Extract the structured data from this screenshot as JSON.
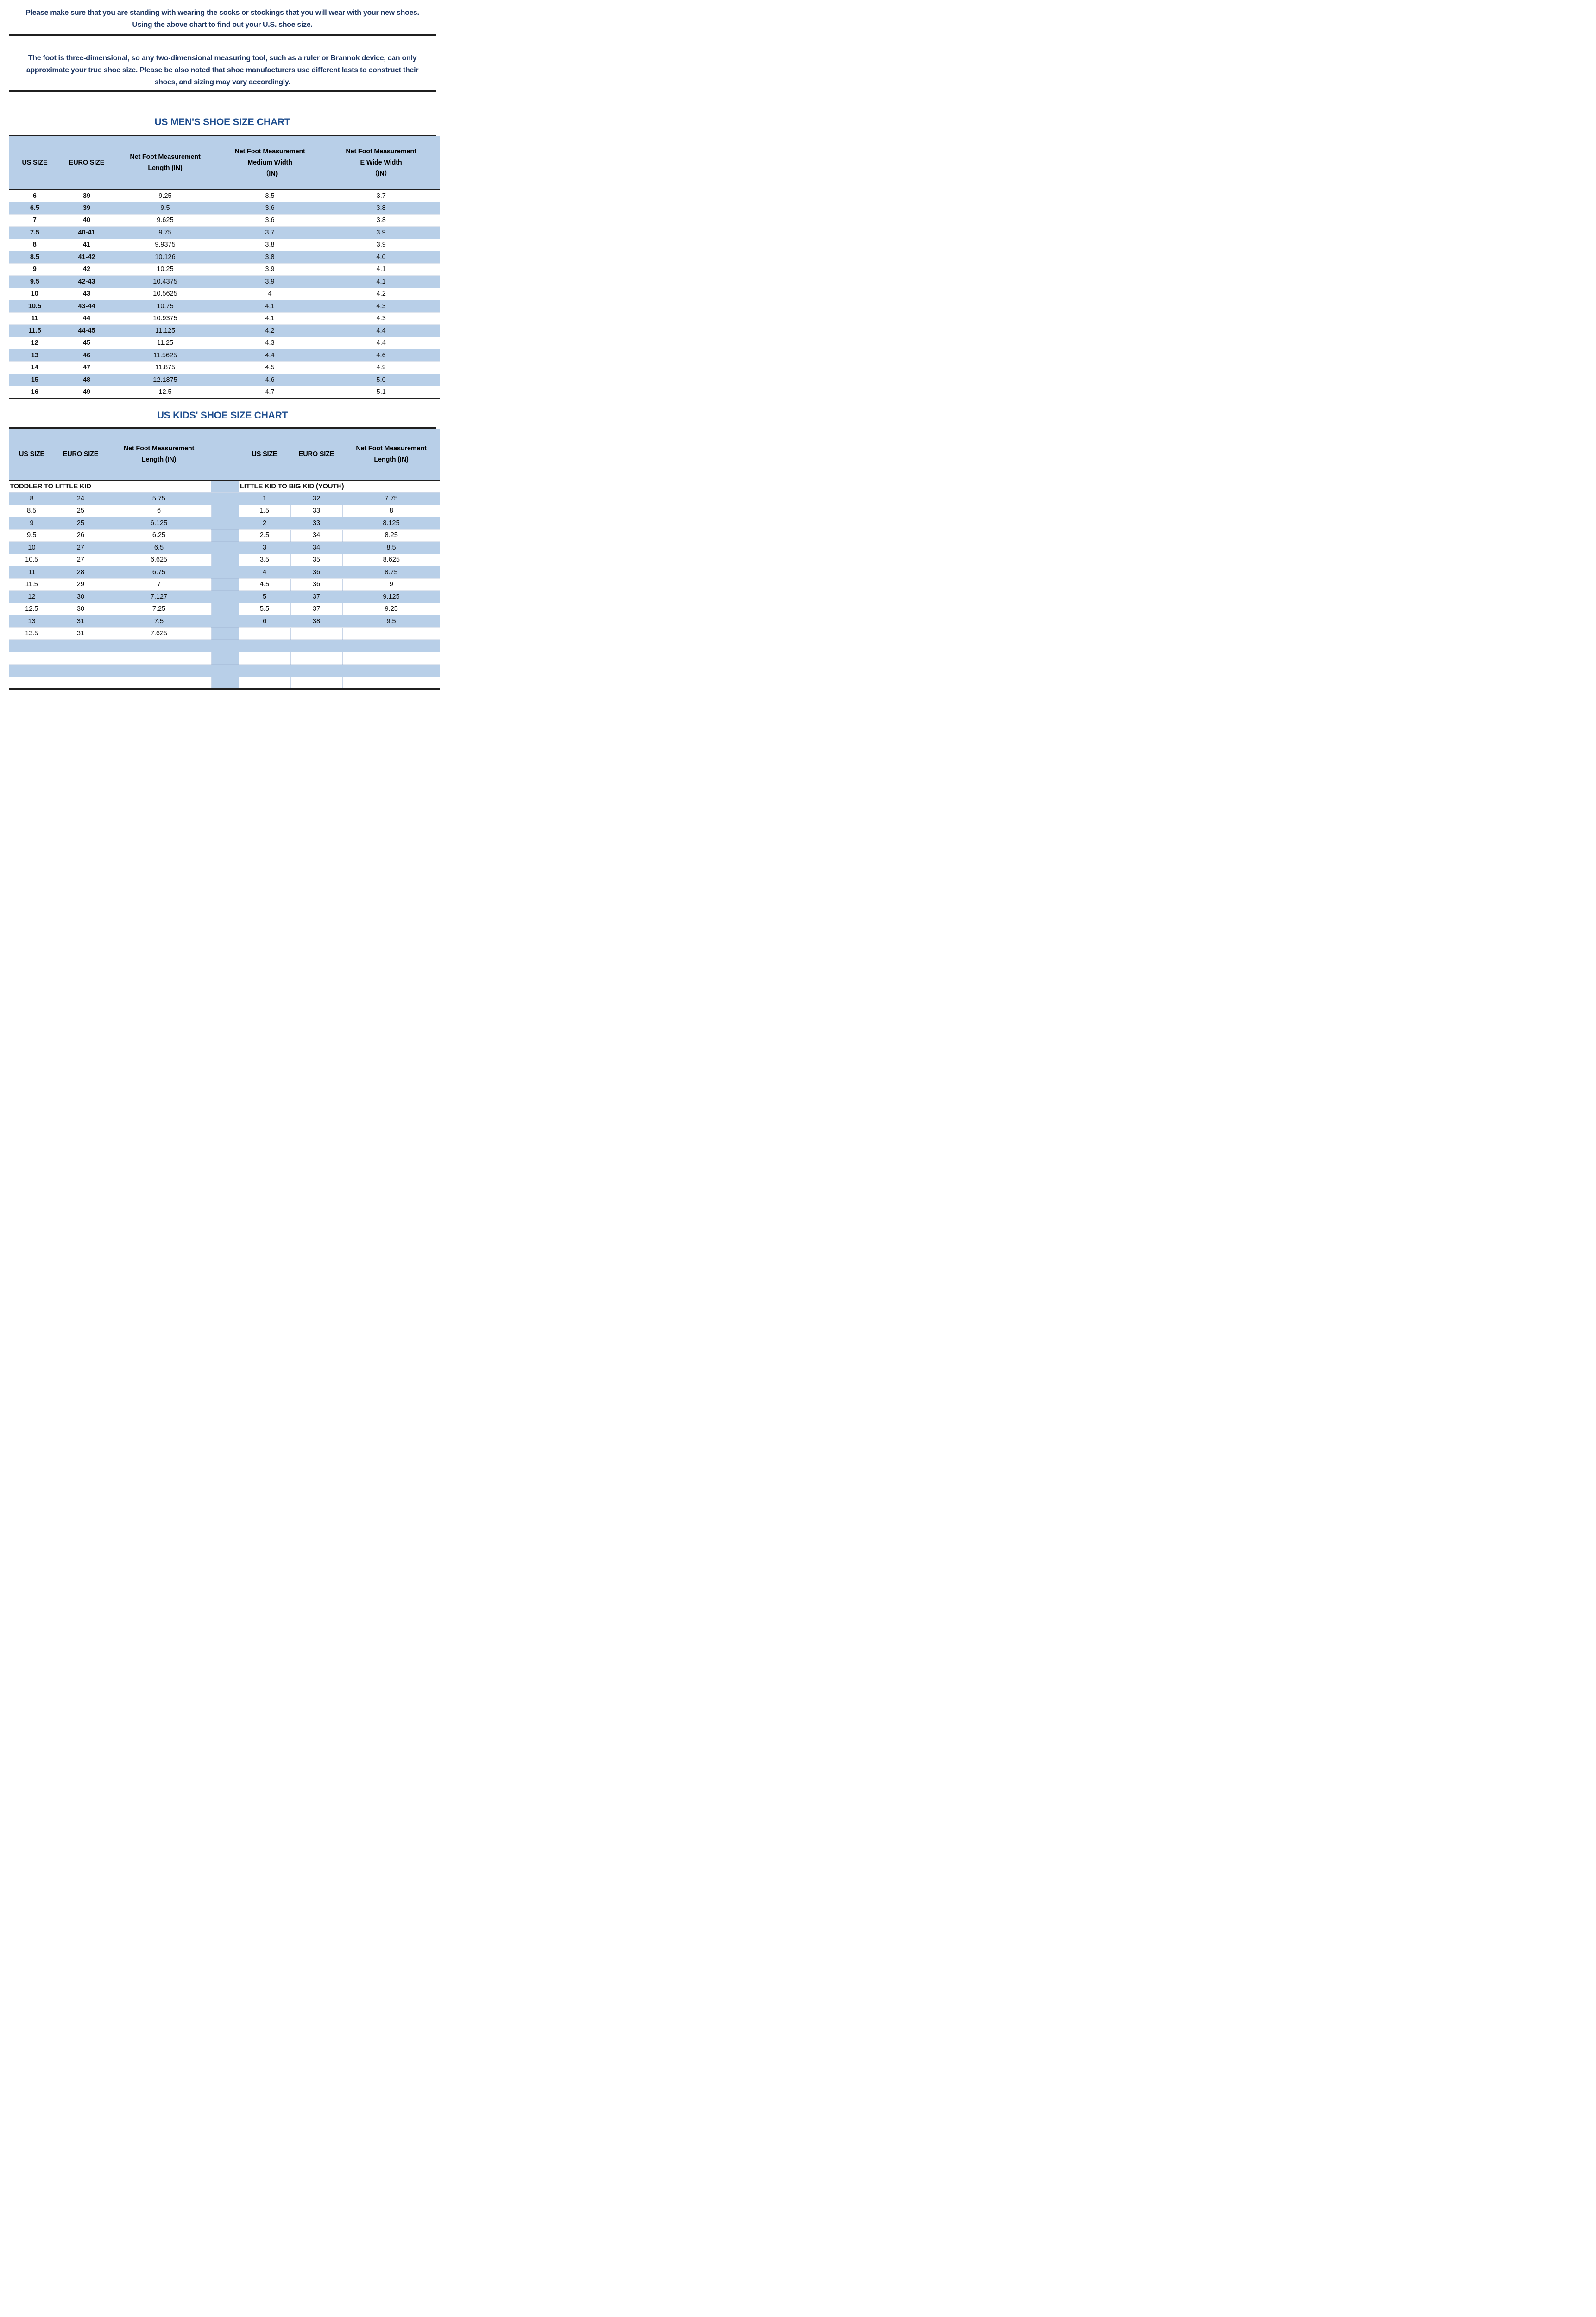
{
  "colors": {
    "accent": "#b8cfe8",
    "heading": "#1f4e8f",
    "bodytext": "#203864",
    "line": "#1f1f1f",
    "grid": "#c9d6e8"
  },
  "intro": {
    "line1": "Please make sure that you are standing with wearing the socks or stockings that you will wear with your new shoes.",
    "line2": "Using the above chart to find out your U.S. shoe size.",
    "note_lines": [
      "The foot is three-dimensional, so any two-dimensional measuring tool, such as a ruler or Brannok device, can only",
      "approximate your true shoe size. Please be also noted that shoe manufacturers use different lasts to construct their",
      "shoes, and sizing may vary accordingly."
    ]
  },
  "mens_chart": {
    "title": "US MEN'S SHOE SIZE CHART",
    "headers": [
      [
        "US SIZE"
      ],
      [
        "EURO SIZE"
      ],
      [
        "Net Foot Measurement",
        "Length (IN)"
      ],
      [
        "Net Foot Measurement",
        "Medium Width",
        "（IN)"
      ],
      [
        "Net Foot Measurement",
        "E Wide Width",
        "（IN）"
      ]
    ],
    "rows": [
      [
        "6",
        "39",
        "9.25",
        "3.5",
        "3.7"
      ],
      [
        "6.5",
        "39",
        "9.5",
        "3.6",
        "3.8"
      ],
      [
        "7",
        "40",
        "9.625",
        "3.6",
        "3.8"
      ],
      [
        "7.5",
        "40-41",
        "9.75",
        "3.7",
        "3.9"
      ],
      [
        "8",
        "41",
        "9.9375",
        "3.8",
        "3.9"
      ],
      [
        "8.5",
        "41-42",
        "10.126",
        "3.8",
        "4.0"
      ],
      [
        "9",
        "42",
        "10.25",
        "3.9",
        "4.1"
      ],
      [
        "9.5",
        "42-43",
        "10.4375",
        "3.9",
        "4.1"
      ],
      [
        "10",
        "43",
        "10.5625",
        "4",
        "4.2"
      ],
      [
        "10.5",
        "43-44",
        "10.75",
        "4.1",
        "4.3"
      ],
      [
        "11",
        "44",
        "10.9375",
        "4.1",
        "4.3"
      ],
      [
        "11.5",
        "44-45",
        "11.125",
        "4.2",
        "4.4"
      ],
      [
        "12",
        "45",
        "11.25",
        "4.3",
        "4.4"
      ],
      [
        "13",
        "46",
        "11.5625",
        "4.4",
        "4.6"
      ],
      [
        "14",
        "47",
        "11.875",
        "4.5",
        "4.9"
      ],
      [
        "15",
        "48",
        "12.1875",
        "4.6",
        "5.0"
      ],
      [
        "16",
        "49",
        "12.5",
        "4.7",
        "5.1"
      ]
    ]
  },
  "kids_chart": {
    "title": "US KIDS' SHOE SIZE CHART",
    "headers_left": [
      [
        "US SIZE"
      ],
      [
        "EURO SIZE"
      ],
      [
        "Net Foot Measurement",
        "Length (IN)"
      ]
    ],
    "headers_right": [
      [
        "US SIZE"
      ],
      [
        "EURO SIZE"
      ],
      [
        "Net Foot Measurement",
        "Length (IN)"
      ]
    ],
    "section_left": "TODDLER TO LITTLE KID",
    "section_right": "LITTLE KID TO BIG KID (YOUTH)",
    "left_rows": [
      [
        "8",
        "24",
        "5.75"
      ],
      [
        "8.5",
        "25",
        "6"
      ],
      [
        "9",
        "25",
        "6.125"
      ],
      [
        "9.5",
        "26",
        "6.25"
      ],
      [
        "10",
        "27",
        "6.5"
      ],
      [
        "10.5",
        "27",
        "6.625"
      ],
      [
        "11",
        "28",
        "6.75"
      ],
      [
        "11.5",
        "29",
        "7"
      ],
      [
        "12",
        "30",
        "7.127"
      ],
      [
        "12.5",
        "30",
        "7.25"
      ],
      [
        "13",
        "31",
        "7.5"
      ],
      [
        "13.5",
        "31",
        "7.625"
      ]
    ],
    "right_rows": [
      [
        "1",
        "32",
        "7.75"
      ],
      [
        "1.5",
        "33",
        "8"
      ],
      [
        "2",
        "33",
        "8.125"
      ],
      [
        "2.5",
        "34",
        "8.25"
      ],
      [
        "3",
        "34",
        "8.5"
      ],
      [
        "3.5",
        "35",
        "8.625"
      ],
      [
        "4",
        "36",
        "8.75"
      ],
      [
        "4.5",
        "36",
        "9"
      ],
      [
        "5",
        "37",
        "9.125"
      ],
      [
        "5.5",
        "37",
        "9.25"
      ],
      [
        "6",
        "38",
        "9.5"
      ],
      [
        "",
        "",
        ""
      ]
    ],
    "empty_rows": 4
  }
}
